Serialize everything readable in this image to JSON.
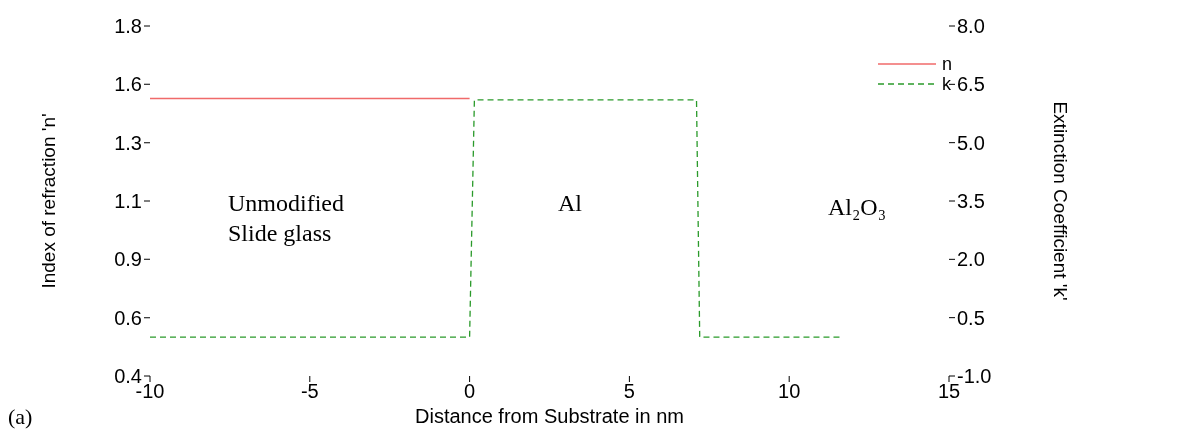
{
  "chart_data": {
    "type": "line",
    "xlabel": "Distance from Substrate in nm",
    "ylabel": "Index of refraction 'n'",
    "y2label": "Extinction Coefficient 'k'",
    "xlim": [
      -10,
      15
    ],
    "xticks": [
      -10,
      -5,
      0,
      5,
      10,
      15
    ],
    "ylim": [
      0.4,
      1.8
    ],
    "yticks": [
      0.4,
      {
        "value": 0.633,
        "label": "0.6"
      },
      {
        "value": 0.867,
        "label": "0.9"
      },
      1.1,
      {
        "value": 1.333,
        "label": "1.3"
      },
      {
        "value": 1.567,
        "label": "1.6"
      },
      1.8
    ],
    "y2lim": [
      -1,
      8
    ],
    "y2ticks": [
      {
        "value": -1,
        "label": "-1.0"
      },
      0.5,
      {
        "value": 2,
        "label": "2.0"
      },
      3.5,
      {
        "value": 5,
        "label": "5.0"
      },
      6.5,
      {
        "value": 8,
        "label": "8.0"
      }
    ],
    "series": [
      {
        "name": "n",
        "color": "#f06a6a",
        "line_style": "solid",
        "x": [
          -10,
          0
        ],
        "values": [
          1.51,
          1.51
        ]
      },
      {
        "name": "k",
        "color": "#2a9a2a",
        "line_style": "dashed",
        "axis": "y2",
        "x": [
          -10,
          0,
          0.15,
          7.1,
          7.2,
          11.6
        ],
        "values": [
          0,
          0,
          6.1,
          6.1,
          0,
          0
        ]
      }
    ],
    "annotations": [
      "Unmodified\nSlide glass",
      "Al",
      "Al₂O₃",
      "(a)"
    ],
    "legend": "top right",
    "grid": false,
    "marker": "none"
  }
}
